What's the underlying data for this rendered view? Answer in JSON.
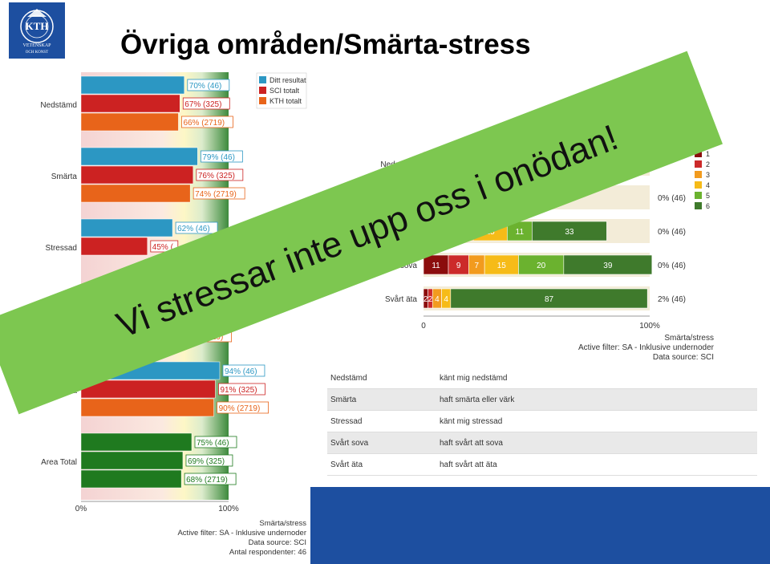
{
  "page": {
    "title": "Övriga områden/Smärta-stress",
    "logo_text": "KTH",
    "logo_sub1": "VETENSKAP",
    "logo_sub2": "OCH KONST"
  },
  "banner": {
    "text": "Vi stressar inte upp oss i onödan!",
    "color": "#7dc750"
  },
  "chart_data": [
    {
      "type": "bar",
      "orientation": "horizontal",
      "categories": [
        "Nedstämd",
        "Smärta",
        "Stressad",
        "Svårt sova",
        "Svårt äta",
        "Area Total"
      ],
      "series": [
        {
          "name": "Ditt resultat",
          "color": "#2c97c3",
          "values": [
            70,
            79,
            62,
            null,
            94,
            75
          ],
          "labels": [
            "70% (46)",
            "79% (46)",
            "62% (46)",
            "",
            "94% (46)",
            "75% (46)"
          ]
        },
        {
          "name": "SCI totalt",
          "color": "#cc2222",
          "values": [
            67,
            76,
            45,
            null,
            91,
            69
          ],
          "labels": [
            "67% (325)",
            "76% (325)",
            "45% (",
            "",
            "91% (325)",
            "69% (325)"
          ]
        },
        {
          "name": "KTH totalt",
          "color": "#e8641a",
          "values": [
            66,
            74,
            null,
            65,
            90,
            68
          ],
          "labels": [
            "66% (2719)",
            "74% (2719)",
            "",
            "65% (2719)",
            "90% (2719)",
            "68% (2719)"
          ]
        }
      ],
      "xlim": [
        0,
        100
      ],
      "xticks": [
        "0%",
        "100%"
      ],
      "footer": [
        "Smärta/stress",
        "Active filter: SA - Inklusive undernoder",
        "Data source: SCI",
        "Antal respondenter: 46"
      ]
    },
    {
      "type": "bar",
      "orientation": "horizontal",
      "stacked": true,
      "categories": [
        "Nedstämd",
        "",
        "",
        "Svårt sova",
        "Svårt äta"
      ],
      "category_labels": [
        "Nedstämd",
        "",
        "",
        "vårt sova",
        "Svårt äta"
      ],
      "series": [
        {
          "name": "1",
          "color": "#8b0d0d",
          "values": [
            null,
            null,
            null,
            11,
            2
          ]
        },
        {
          "name": "2",
          "color": "#cc2a2a",
          "values": [
            null,
            null,
            null,
            9,
            2
          ]
        },
        {
          "name": "3",
          "color": "#f29b1e",
          "values": [
            null,
            null,
            22,
            7,
            4
          ]
        },
        {
          "name": "4",
          "color": "#f6bb18",
          "values": [
            null,
            null,
            15,
            15,
            4
          ]
        },
        {
          "name": "5",
          "color": "#6bb22f",
          "values": [
            null,
            null,
            11,
            20,
            null
          ]
        },
        {
          "name": "6",
          "color": "#3f7a2c",
          "values": [
            null,
            null,
            33,
            39,
            87
          ]
        }
      ],
      "row_notes": [
        "",
        "0% (46)",
        "0% (46)",
        "0% (46)",
        "2% (46)"
      ],
      "xlim": [
        0,
        100
      ],
      "xticks": [
        "0",
        "100%"
      ],
      "footer": [
        "Smärta/stress",
        "Active filter: SA - Inklusive undernoder",
        "Data source: SCI"
      ]
    }
  ],
  "definitions": [
    {
      "term": "Nedstämd",
      "text": "känt mig nedstämd"
    },
    {
      "term": "Smärta",
      "text": "haft smärta eller värk"
    },
    {
      "term": "Stressad",
      "text": "känt mig stressad"
    },
    {
      "term": "Svårt sova",
      "text": "haft svårt att sova"
    },
    {
      "term": "Svårt äta",
      "text": "haft svårt att äta"
    }
  ]
}
